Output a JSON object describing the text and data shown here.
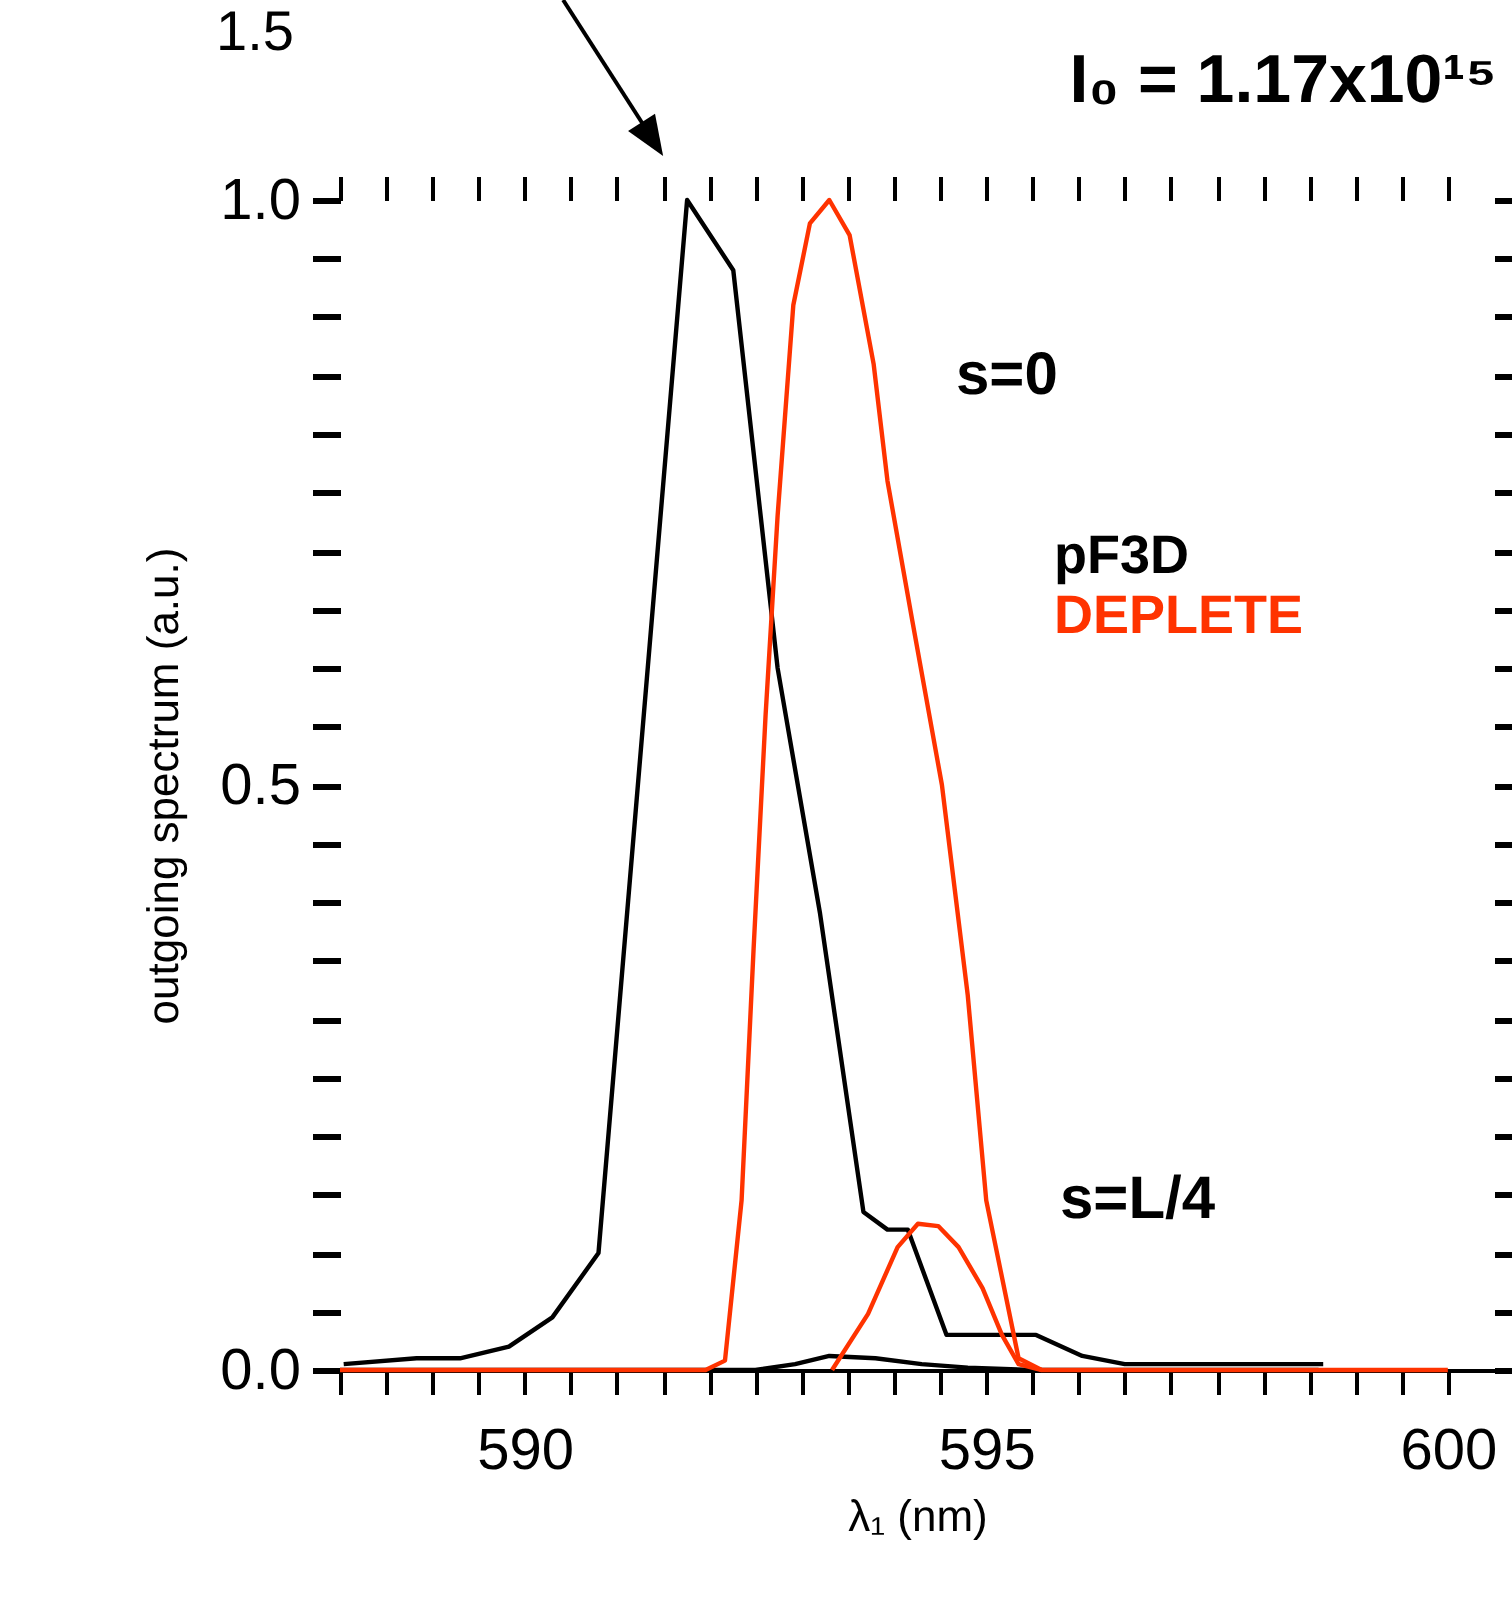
{
  "chart_data": {
    "type": "line",
    "title": "I₀ = 1.17x10¹⁵",
    "xlabel": "λ₁  (nm)",
    "ylabel": "outgoing spectrum  (a.u.)",
    "annotations": [
      "1.5",
      "s=0",
      "s=L/4"
    ],
    "series": [
      {
        "name": "pF3D",
        "color": "#000000",
        "x": [
          588.04,
          588.83,
          589.3,
          589.83,
          590.3,
          590.8,
          591.76,
          592.26,
          592.74,
          593.2,
          593.67,
          593.93,
          594.15,
          594.57,
          595.54,
          596.04,
          596.5,
          598.65
        ],
        "values": [
          0.005,
          0.01,
          0.01,
          0.02,
          0.045,
          0.1,
          1.0,
          0.94,
          0.6,
          0.39,
          0.135,
          0.12,
          0.12,
          0.03,
          0.03,
          0.012,
          0.005,
          0.005
        ]
      },
      {
        "color": "#000000",
        "x": [
          588.0,
          592.5,
          592.93,
          593.3,
          593.8,
          594.3,
          594.8,
          595.5,
          598.6
        ],
        "values": [
          0,
          0,
          0.005,
          0.012,
          0.01,
          0.005,
          0.002,
          0,
          0
        ]
      },
      {
        "name": "DEPLETE",
        "color": "#ff3300",
        "x": [
          588,
          591.96,
          592.17,
          592.35,
          592.48,
          592.61,
          592.74,
          592.91,
          593.09,
          593.3,
          593.52,
          593.78,
          593.93,
          594.2,
          594.52,
          594.8,
          595.0,
          595.35,
          595.6,
          600
        ],
        "values": [
          0,
          0,
          0.008,
          0.145,
          0.36,
          0.56,
          0.73,
          0.91,
          0.98,
          1.0,
          0.97,
          0.86,
          0.76,
          0.64,
          0.5,
          0.32,
          0.145,
          0.01,
          0,
          0
        ]
      },
      {
        "color": "#ff3300",
        "x": [
          593.33,
          593.72,
          594.04,
          594.26,
          594.48,
          594.7,
          594.96,
          595.17,
          595.35,
          595.6
        ],
        "values": [
          0,
          0.048,
          0.105,
          0.125,
          0.123,
          0.105,
          0.07,
          0.03,
          0.005,
          0
        ]
      }
    ],
    "xlim": [
      588,
      600.5
    ],
    "ylim": [
      0,
      1
    ],
    "xticks": [
      {
        "value": 588,
        "label": null
      },
      {
        "value": 588.5,
        "label": null
      },
      {
        "value": 589,
        "label": null
      },
      {
        "value": 589.5,
        "label": null
      },
      590,
      {
        "value": 590.5,
        "label": null
      },
      {
        "value": 591,
        "label": null
      },
      {
        "value": 591.5,
        "label": null
      },
      {
        "value": 592,
        "label": null
      },
      {
        "value": 592.5,
        "label": null
      },
      {
        "value": 593,
        "label": null
      },
      {
        "value": 593.5,
        "label": null
      },
      {
        "value": 594,
        "label": null
      },
      {
        "value": 594.5,
        "label": null
      },
      595,
      {
        "value": 595.5,
        "label": null
      },
      {
        "value": 596,
        "label": null
      },
      {
        "value": 596.5,
        "label": null
      },
      {
        "value": 597,
        "label": null
      },
      {
        "value": 597.5,
        "label": null
      },
      {
        "value": 598,
        "label": null
      },
      {
        "value": 598.5,
        "label": null
      },
      {
        "value": 599,
        "label": null
      },
      {
        "value": 599.5,
        "label": null
      },
      600
    ],
    "yticks": [
      {
        "value": 0,
        "label": "0.0"
      },
      {
        "value": 0.05,
        "label": null
      },
      {
        "value": 0.1,
        "label": null
      },
      {
        "value": 0.15,
        "label": null
      },
      {
        "value": 0.2,
        "label": null
      },
      {
        "value": 0.25,
        "label": null
      },
      {
        "value": 0.3,
        "label": null
      },
      {
        "value": 0.35,
        "label": null
      },
      {
        "value": 0.4,
        "label": null
      },
      {
        "value": 0.45,
        "label": null
      },
      {
        "value": 0.5,
        "label": "0.5"
      },
      {
        "value": 0.55,
        "label": null
      },
      {
        "value": 0.6,
        "label": null
      },
      {
        "value": 0.65,
        "label": null
      },
      {
        "value": 0.7,
        "label": null
      },
      {
        "value": 0.75,
        "label": null
      },
      {
        "value": 0.8,
        "label": null
      },
      {
        "value": 0.85,
        "label": null
      },
      {
        "value": 0.9,
        "label": null
      },
      {
        "value": 0.95,
        "label": null
      },
      {
        "value": 1,
        "label": "1.0"
      }
    ],
    "legend": "right",
    "grid": false
  }
}
